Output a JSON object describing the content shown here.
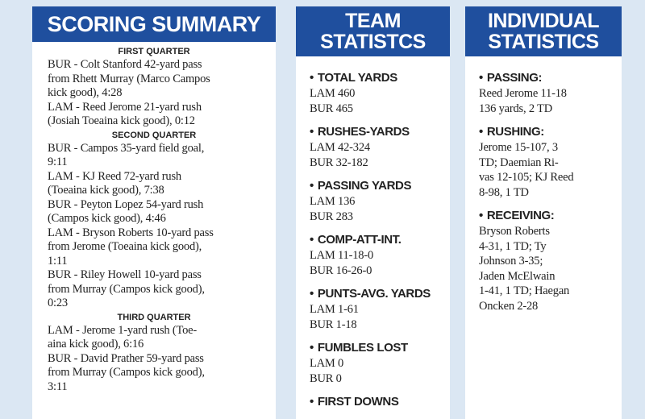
{
  "scoring_summary": {
    "title": "SCORING SUMMARY",
    "quarters": [
      {
        "name": "FIRST QUARTER",
        "plays": [
          [
            "BUR - Colt Stanford 42-yard pass",
            "from Rhett Murray (Marco Campos",
            "kick good), 4:28"
          ],
          [
            "LAM - Reed Jerome 21-yard rush",
            "(Josiah Toeaina kick good), 0:12"
          ]
        ]
      },
      {
        "name": "SECOND QUARTER",
        "plays": [
          [
            "BUR - Campos 35-yard field goal,",
            "9:11"
          ],
          [
            "LAM - KJ Reed 72-yard rush",
            "(Toeaina kick good), 7:38"
          ],
          [
            "BUR - Peyton Lopez 54-yard rush",
            "(Campos kick good), 4:46"
          ],
          [
            "LAM - Bryson Roberts 10-yard pass",
            "from Jerome (Toeaina kick good),",
            "1:11"
          ],
          [
            "BUR - Riley Howell 10-yard pass",
            "from Murray (Campos kick good),",
            "0:23"
          ]
        ]
      },
      {
        "name": "THIRD QUARTER",
        "plays": [
          [
            "LAM - Jerome 1-yard rush (Toe-",
            "aina kick good), 6:16"
          ],
          [
            "BUR - David Prather 59-yard pass",
            "from Murray (Campos kick good),",
            "3:11"
          ]
        ]
      }
    ]
  },
  "team_statistics": {
    "title_lines": [
      "TEAM",
      "STATISTCS"
    ],
    "items": [
      {
        "label": "TOTAL YARDS",
        "lines": [
          "LAM 460",
          "BUR 465"
        ]
      },
      {
        "label": "RUSHES-YARDS",
        "lines": [
          "LAM 42-324",
          "BUR 32-182"
        ]
      },
      {
        "label": "PASSING YARDS",
        "lines": [
          "LAM 136",
          "BUR 283"
        ]
      },
      {
        "label": "COMP-ATT-INT.",
        "lines": [
          "LAM 11-18-0",
          "BUR 16-26-0"
        ]
      },
      {
        "label": "PUNTS-AVG. YARDS",
        "lines": [
          "LAM 1-61",
          "BUR 1-18"
        ]
      },
      {
        "label": "FUMBLES LOST",
        "lines": [
          "LAM 0",
          "BUR 0"
        ]
      },
      {
        "label": "FIRST DOWNS",
        "lines": []
      }
    ]
  },
  "individual_statistics": {
    "title_lines": [
      "INDIVIDUAL",
      "STATISTICS"
    ],
    "items": [
      {
        "label": "PASSING:",
        "lines": [
          "Reed Jerome 11-18",
          "136 yards, 2 TD"
        ]
      },
      {
        "label": "RUSHING:",
        "lines": [
          "Jerome 15-107, 3",
          "TD; Daemian Ri-",
          "vas 12-105; KJ Reed",
          "8-98, 1 TD"
        ]
      },
      {
        "label": "RECEIVING:",
        "lines": [
          "Bryson Roberts",
          "4-31, 1 TD; Ty",
          "Johnson 3-35;",
          "Jaden McElwain",
          "1-41, 1 TD; Haegan",
          "Oncken 2-28"
        ]
      }
    ]
  }
}
